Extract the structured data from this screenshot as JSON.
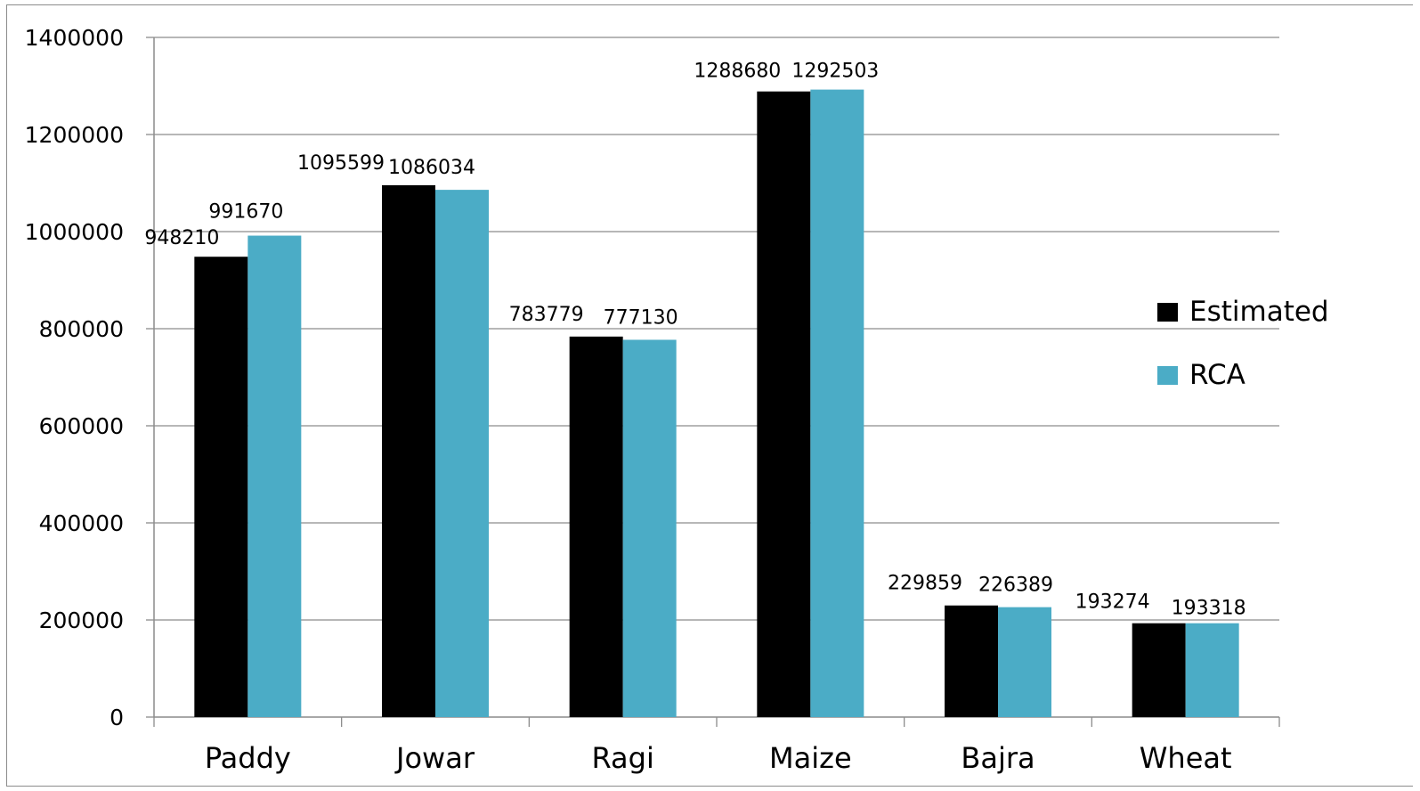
{
  "chart_data": {
    "type": "bar",
    "categories": [
      "Paddy",
      "Jowar",
      "Ragi",
      "Maize",
      "Bajra",
      "Wheat"
    ],
    "series": [
      {
        "name": "Estimated",
        "color": "#000000",
        "values": [
          948210,
          1095599,
          783779,
          1288680,
          229859,
          193274
        ]
      },
      {
        "name": "RCA",
        "color": "#4bacc6",
        "values": [
          991670,
          1086034,
          777130,
          1292503,
          226389,
          193318
        ]
      }
    ],
    "y_ticks": [
      "0",
      "200000",
      "400000",
      "600000",
      "800000",
      "1000000",
      "1200000",
      "1400000"
    ],
    "ylim": [
      0,
      1400000
    ],
    "grid": true,
    "legend_position": "right",
    "title": "",
    "xlabel": "",
    "ylabel": ""
  }
}
